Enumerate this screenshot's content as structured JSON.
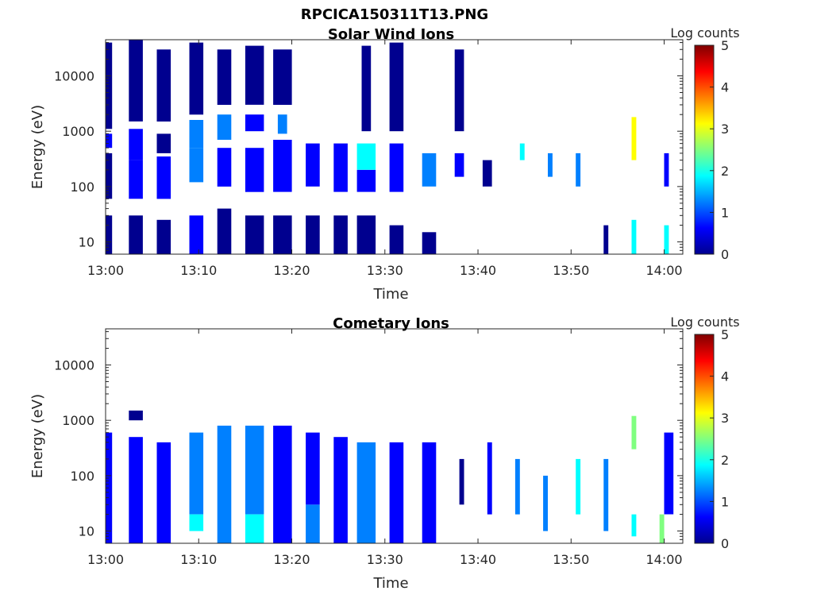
{
  "figure_title": "RPCICA150311T13.PNG",
  "colormap": [
    "#00008f",
    "#0000ff",
    "#0080ff",
    "#00ffff",
    "#80ff80",
    "#ffff00",
    "#ff8000",
    "#ff0000",
    "#800000"
  ],
  "chart_data": [
    {
      "type": "heatmap",
      "title": "Solar Wind Ions",
      "xlabel": "Time",
      "ylabel": "Energy (eV)",
      "xticks": [
        "13:00",
        "13:10",
        "13:20",
        "13:30",
        "13:40",
        "13:50",
        "14:00"
      ],
      "xlim_minutes": [
        0,
        62
      ],
      "yscale": "log",
      "ylim": [
        6,
        45000
      ],
      "yticks": [
        "10",
        "100",
        "1000",
        "10000"
      ],
      "colorbar_label": "Log counts",
      "colorbar_ticks": [
        "0",
        "1",
        "2",
        "3",
        "4",
        "5"
      ],
      "clim": [
        0,
        5
      ],
      "grid": false,
      "cells": [
        {
          "t0": 0,
          "t1": 0.7,
          "e0": 6,
          "e1": 30,
          "v": 0.2
        },
        {
          "t0": 0,
          "t1": 0.7,
          "e0": 60,
          "e1": 400,
          "v": 0.3
        },
        {
          "t0": 0,
          "t1": 0.7,
          "e0": 500,
          "e1": 900,
          "v": 0.8
        },
        {
          "t0": 0,
          "t1": 0.7,
          "e0": 1100,
          "e1": 40000,
          "v": 0.0
        },
        {
          "t0": 2.5,
          "t1": 4,
          "e0": 6,
          "e1": 30,
          "v": 0.2
        },
        {
          "t0": 2.5,
          "t1": 4,
          "e0": 60,
          "e1": 300,
          "v": 0.4
        },
        {
          "t0": 2.5,
          "t1": 4,
          "e0": 300,
          "e1": 1100,
          "v": 0.9
        },
        {
          "t0": 2.5,
          "t1": 4,
          "e0": 1500,
          "e1": 45000,
          "v": 0.0
        },
        {
          "t0": 5.5,
          "t1": 7,
          "e0": 6,
          "e1": 25,
          "v": 0.2
        },
        {
          "t0": 5.5,
          "t1": 7,
          "e0": 60,
          "e1": 350,
          "v": 0.5
        },
        {
          "t0": 5.5,
          "t1": 7,
          "e0": 400,
          "e1": 900,
          "v": 0.3
        },
        {
          "t0": 5.5,
          "t1": 7,
          "e0": 1500,
          "e1": 30000,
          "v": 0.0
        },
        {
          "t0": 9,
          "t1": 10.5,
          "e0": 6,
          "e1": 30,
          "v": 0.4
        },
        {
          "t0": 9,
          "t1": 10.5,
          "e0": 120,
          "e1": 500,
          "v": 1.4
        },
        {
          "t0": 9,
          "t1": 10.5,
          "e0": 500,
          "e1": 1600,
          "v": 1.0
        },
        {
          "t0": 9,
          "t1": 10.5,
          "e0": 2000,
          "e1": 40000,
          "v": 0.0
        },
        {
          "t0": 12,
          "t1": 13.5,
          "e0": 6,
          "e1": 40,
          "v": 0.3
        },
        {
          "t0": 12,
          "t1": 13.5,
          "e0": 100,
          "e1": 500,
          "v": 0.7
        },
        {
          "t0": 12,
          "t1": 13.5,
          "e0": 700,
          "e1": 2000,
          "v": 1.1
        },
        {
          "t0": 12,
          "t1": 13.5,
          "e0": 3000,
          "e1": 30000,
          "v": 0.0
        },
        {
          "t0": 15,
          "t1": 17,
          "e0": 6,
          "e1": 30,
          "v": 0.2
        },
        {
          "t0": 15,
          "t1": 17,
          "e0": 80,
          "e1": 500,
          "v": 0.7
        },
        {
          "t0": 15,
          "t1": 17,
          "e0": 1000,
          "e1": 2000,
          "v": 0.8
        },
        {
          "t0": 15,
          "t1": 17,
          "e0": 3000,
          "e1": 35000,
          "v": 0.0
        },
        {
          "t0": 18,
          "t1": 20,
          "e0": 6,
          "e1": 30,
          "v": 0.2
        },
        {
          "t0": 18,
          "t1": 20,
          "e0": 80,
          "e1": 700,
          "v": 0.6
        },
        {
          "t0": 18.5,
          "t1": 19.5,
          "e0": 900,
          "e1": 2000,
          "v": 1.5
        },
        {
          "t0": 18,
          "t1": 20,
          "e0": 3000,
          "e1": 30000,
          "v": 0.0
        },
        {
          "t0": 21.5,
          "t1": 23,
          "e0": 6,
          "e1": 30,
          "v": 0.2
        },
        {
          "t0": 21.5,
          "t1": 23,
          "e0": 100,
          "e1": 600,
          "v": 0.4
        },
        {
          "t0": 24.5,
          "t1": 26,
          "e0": 6,
          "e1": 30,
          "v": 0.2
        },
        {
          "t0": 24.5,
          "t1": 26,
          "e0": 80,
          "e1": 600,
          "v": 0.4
        },
        {
          "t0": 27,
          "t1": 29,
          "e0": 6,
          "e1": 30,
          "v": 0.3
        },
        {
          "t0": 27,
          "t1": 29,
          "e0": 200,
          "e1": 600,
          "v": 1.8
        },
        {
          "t0": 27,
          "t1": 29,
          "e0": 80,
          "e1": 200,
          "v": 0.6
        },
        {
          "t0": 27.5,
          "t1": 28.5,
          "e0": 1000,
          "e1": 35000,
          "v": 0.0
        },
        {
          "t0": 30.5,
          "t1": 32,
          "e0": 6,
          "e1": 20,
          "v": 0.2
        },
        {
          "t0": 30.5,
          "t1": 32,
          "e0": 80,
          "e1": 600,
          "v": 0.4
        },
        {
          "t0": 30.5,
          "t1": 32,
          "e0": 1000,
          "e1": 40000,
          "v": 0.0
        },
        {
          "t0": 34,
          "t1": 35.5,
          "e0": 6,
          "e1": 15,
          "v": 0.2
        },
        {
          "t0": 34,
          "t1": 35.5,
          "e0": 100,
          "e1": 400,
          "v": 1.0
        },
        {
          "t0": 37.5,
          "t1": 38.5,
          "e0": 150,
          "e1": 400,
          "v": 0.8
        },
        {
          "t0": 37.5,
          "t1": 38.5,
          "e0": 1000,
          "e1": 30000,
          "v": 0.0
        },
        {
          "t0": 40.5,
          "t1": 41.5,
          "e0": 100,
          "e1": 300,
          "v": 0.3
        },
        {
          "t0": 44.5,
          "t1": 45,
          "e0": 300,
          "e1": 600,
          "v": 1.6
        },
        {
          "t0": 47.5,
          "t1": 48,
          "e0": 150,
          "e1": 400,
          "v": 1.0
        },
        {
          "t0": 50.5,
          "t1": 51,
          "e0": 100,
          "e1": 400,
          "v": 1.2
        },
        {
          "t0": 53.5,
          "t1": 54,
          "e0": 6,
          "e1": 20,
          "v": 0.2
        },
        {
          "t0": 56.5,
          "t1": 57,
          "e0": 300,
          "e1": 1800,
          "v": 3.0
        },
        {
          "t0": 56.5,
          "t1": 57,
          "e0": 6,
          "e1": 25,
          "v": 1.6
        },
        {
          "t0": 60,
          "t1": 60.5,
          "e0": 6,
          "e1": 20,
          "v": 1.8
        },
        {
          "t0": 60,
          "t1": 60.5,
          "e0": 100,
          "e1": 400,
          "v": 0.4
        }
      ]
    },
    {
      "type": "heatmap",
      "title": "Cometary Ions",
      "xlabel": "Time",
      "ylabel": "Energy (eV)",
      "xticks": [
        "13:00",
        "13:10",
        "13:20",
        "13:30",
        "13:40",
        "13:50",
        "14:00"
      ],
      "xlim_minutes": [
        0,
        62
      ],
      "yscale": "log",
      "ylim": [
        6,
        45000
      ],
      "yticks": [
        "10",
        "100",
        "1000",
        "10000"
      ],
      "colorbar_label": "Log counts",
      "colorbar_ticks": [
        "0",
        "1",
        "2",
        "3",
        "4",
        "5"
      ],
      "clim": [
        0,
        5
      ],
      "grid": false,
      "cells": [
        {
          "t0": 0,
          "t1": 0.7,
          "e0": 6,
          "e1": 600,
          "v": 0.4
        },
        {
          "t0": 2.5,
          "t1": 4,
          "e0": 6,
          "e1": 500,
          "v": 0.5
        },
        {
          "t0": 2.5,
          "t1": 4,
          "e0": 1000,
          "e1": 1500,
          "v": 0.1
        },
        {
          "t0": 5.5,
          "t1": 7,
          "e0": 6,
          "e1": 400,
          "v": 0.8
        },
        {
          "t0": 9,
          "t1": 10.5,
          "e0": 10,
          "e1": 20,
          "v": 2.0
        },
        {
          "t0": 9,
          "t1": 10.5,
          "e0": 20,
          "e1": 600,
          "v": 1.0
        },
        {
          "t0": 12,
          "t1": 13.5,
          "e0": 6,
          "e1": 800,
          "v": 1.2
        },
        {
          "t0": 15,
          "t1": 17,
          "e0": 6,
          "e1": 20,
          "v": 1.6
        },
        {
          "t0": 15,
          "t1": 17,
          "e0": 20,
          "e1": 800,
          "v": 1.1
        },
        {
          "t0": 18,
          "t1": 20,
          "e0": 6,
          "e1": 800,
          "v": 0.9
        },
        {
          "t0": 21.5,
          "t1": 23,
          "e0": 6,
          "e1": 30,
          "v": 1.5
        },
        {
          "t0": 21.5,
          "t1": 23,
          "e0": 30,
          "e1": 600,
          "v": 0.8
        },
        {
          "t0": 24.5,
          "t1": 26,
          "e0": 6,
          "e1": 500,
          "v": 0.7
        },
        {
          "t0": 27,
          "t1": 29,
          "e0": 6,
          "e1": 400,
          "v": 1.3
        },
        {
          "t0": 30.5,
          "t1": 32,
          "e0": 6,
          "e1": 400,
          "v": 0.6
        },
        {
          "t0": 34,
          "t1": 35.5,
          "e0": 6,
          "e1": 400,
          "v": 0.4
        },
        {
          "t0": 38,
          "t1": 38.5,
          "e0": 30,
          "e1": 200,
          "v": 0.3
        },
        {
          "t0": 41,
          "t1": 41.5,
          "e0": 20,
          "e1": 400,
          "v": 0.8
        },
        {
          "t0": 44,
          "t1": 44.5,
          "e0": 20,
          "e1": 200,
          "v": 1.2
        },
        {
          "t0": 47,
          "t1": 47.5,
          "e0": 10,
          "e1": 100,
          "v": 1.5
        },
        {
          "t0": 50.5,
          "t1": 51,
          "e0": 20,
          "e1": 200,
          "v": 1.8
        },
        {
          "t0": 53.5,
          "t1": 54,
          "e0": 10,
          "e1": 200,
          "v": 1.4
        },
        {
          "t0": 56.5,
          "t1": 57,
          "e0": 8,
          "e1": 20,
          "v": 1.9
        },
        {
          "t0": 56.5,
          "t1": 57,
          "e0": 300,
          "e1": 1200,
          "v": 2.5
        },
        {
          "t0": 59.5,
          "t1": 60,
          "e0": 6,
          "e1": 20,
          "v": 2.6
        },
        {
          "t0": 60,
          "t1": 61,
          "e0": 20,
          "e1": 600,
          "v": 0.8
        }
      ]
    }
  ]
}
